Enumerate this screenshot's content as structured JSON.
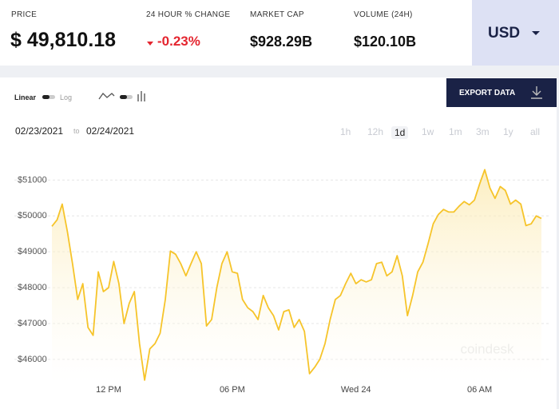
{
  "header": {
    "price_label": "PRICE",
    "price": "$ 49,810.18",
    "change_label": "24 HOUR % CHANGE",
    "change": "-0.23%",
    "market_cap_label": "MARKET CAP",
    "market_cap": "$928.29B",
    "volume_label": "VOLUME (24H)",
    "volume": "$120.10B",
    "currency": "USD"
  },
  "controls": {
    "linear": "Linear",
    "log": "Log",
    "export": "EXPORT DATA",
    "date_from": "02/23/2021",
    "date_sep": "to",
    "date_to": "02/24/2021",
    "ranges": [
      "1h",
      "12h",
      "1d",
      "1w",
      "1m",
      "3m",
      "1y",
      "all"
    ],
    "active_range": "1d"
  },
  "watermark": "coindesk",
  "chart_data": {
    "type": "line",
    "color": "#f6c42a",
    "grid": true,
    "categories": [
      null,
      null,
      null,
      null,
      null,
      null,
      null,
      null,
      null,
      null,
      null,
      "12 PM",
      null,
      null,
      null,
      null,
      null,
      null,
      null,
      null,
      null,
      null,
      null,
      null,
      null,
      null,
      null,
      null,
      null,
      null,
      null,
      null,
      null,
      null,
      null,
      "06 PM",
      null,
      null,
      null,
      null,
      null,
      null,
      null,
      null,
      null,
      null,
      null,
      null,
      null,
      null,
      null,
      null,
      null,
      null,
      null,
      null,
      null,
      null,
      null,
      "Wed 24",
      null,
      null,
      null,
      null,
      null,
      null,
      null,
      null,
      null,
      null,
      null,
      null,
      null,
      null,
      null,
      null,
      null,
      null,
      null,
      null,
      null,
      null,
      null,
      "06 AM",
      null,
      null,
      null,
      null,
      null,
      null,
      null,
      null,
      null,
      null,
      null,
      null
    ],
    "values": [
      49710,
      49890,
      50330,
      49560,
      48670,
      47670,
      48110,
      46890,
      46670,
      48440,
      47890,
      48000,
      48730,
      48110,
      47000,
      47560,
      47890,
      46440,
      45420,
      46290,
      46440,
      46730,
      47670,
      49020,
      48930,
      48670,
      48330,
      48670,
      49000,
      48670,
      46930,
      47110,
      48000,
      48670,
      49000,
      48440,
      48400,
      47670,
      47440,
      47330,
      47110,
      47780,
      47440,
      47220,
      46820,
      47330,
      47380,
      46890,
      47110,
      46780,
      45600,
      45780,
      46000,
      46440,
      47110,
      47670,
      47780,
      48110,
      48400,
      48110,
      48220,
      48160,
      48220,
      48670,
      48710,
      48330,
      48440,
      48890,
      48330,
      47220,
      47780,
      48440,
      48710,
      49220,
      49780,
      50040,
      50180,
      50110,
      50110,
      50270,
      50400,
      50310,
      50440,
      50890,
      51290,
      50780,
      50490,
      50820,
      50710,
      50330,
      50440,
      50330,
      49730,
      49780,
      50000,
      49930
    ],
    "ylim": [
      45150,
      51900
    ],
    "yticks": [
      {
        "value": 46000,
        "label": "$46000"
      },
      {
        "value": 47000,
        "label": "$47000"
      },
      {
        "value": 48000,
        "label": "$48000"
      },
      {
        "value": 49000,
        "label": "$49000"
      },
      {
        "value": 50000,
        "label": "$50000"
      },
      {
        "value": 51000,
        "label": "$51000"
      }
    ]
  }
}
